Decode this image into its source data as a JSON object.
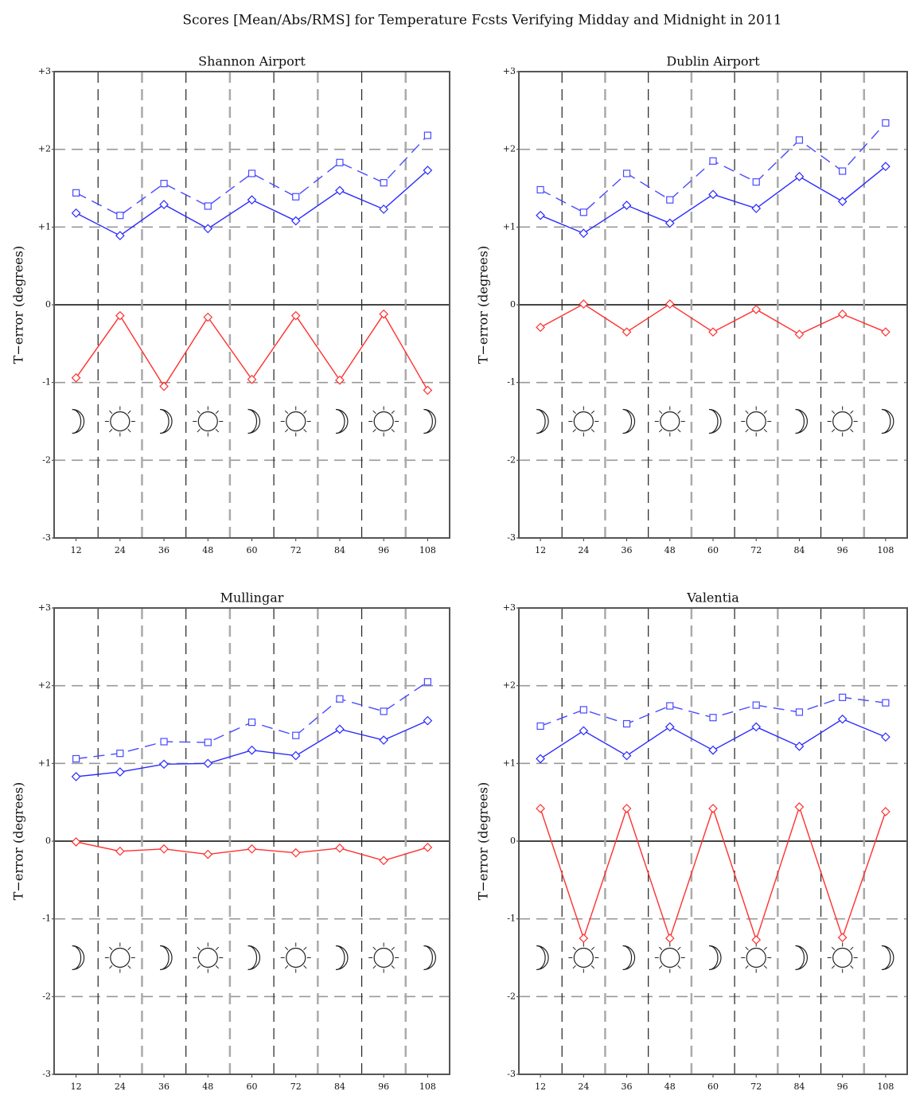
{
  "title": "Scores [Mean/Abs/RMS] for Temperature Fcsts Verifying Midday and Midnight in 2011",
  "chart_data": [
    {
      "type": "line",
      "title": "Shannon Airport",
      "ylabel": "T−error  (degrees)",
      "x": [
        12,
        24,
        36,
        48,
        60,
        72,
        84,
        96,
        108
      ],
      "xlim": [
        6,
        114
      ],
      "xticks": [
        12,
        24,
        36,
        48,
        60,
        72,
        84,
        96,
        108
      ],
      "ylim": [
        -3,
        3
      ],
      "yticks": [
        {
          "value": 3,
          "label": "+3"
        },
        {
          "value": 2,
          "label": "+2"
        },
        {
          "value": 1,
          "label": "+1"
        },
        0,
        -1,
        -2,
        -3
      ],
      "grid": true,
      "series": [
        {
          "color": "#4a4aff",
          "style": "dashed",
          "marker": "square",
          "values": [
            1.44,
            1.15,
            1.56,
            1.27,
            1.69,
            1.39,
            1.83,
            1.57,
            2.18
          ]
        },
        {
          "color": "#2a2aff",
          "style": "solid",
          "marker": "diamond",
          "values": [
            1.18,
            0.89,
            1.29,
            0.98,
            1.35,
            1.08,
            1.47,
            1.23,
            1.73
          ]
        },
        {
          "color": "#ff3030",
          "style": "solid",
          "marker": "diamond",
          "values": [
            -0.94,
            -0.14,
            -1.05,
            -0.16,
            -0.96,
            -0.14,
            -0.97,
            -0.12,
            -1.1
          ]
        }
      ]
    },
    {
      "type": "line",
      "title": "Dublin Airport",
      "ylabel": "T−error  (degrees)",
      "x": [
        12,
        24,
        36,
        48,
        60,
        72,
        84,
        96,
        108
      ],
      "xlim": [
        6,
        114
      ],
      "xticks": [
        12,
        24,
        36,
        48,
        60,
        72,
        84,
        96,
        108
      ],
      "ylim": [
        -3,
        3
      ],
      "yticks": [
        {
          "value": 3,
          "label": "+3"
        },
        {
          "value": 2,
          "label": "+2"
        },
        {
          "value": 1,
          "label": "+1"
        },
        0,
        -1,
        -2,
        -3
      ],
      "grid": true,
      "series": [
        {
          "color": "#4a4aff",
          "style": "dashed",
          "marker": "square",
          "values": [
            1.48,
            1.19,
            1.69,
            1.35,
            1.85,
            1.58,
            2.12,
            1.72,
            2.34
          ]
        },
        {
          "color": "#2a2aff",
          "style": "solid",
          "marker": "diamond",
          "values": [
            1.15,
            0.92,
            1.28,
            1.05,
            1.42,
            1.24,
            1.65,
            1.33,
            1.78
          ]
        },
        {
          "color": "#ff3030",
          "style": "solid",
          "marker": "diamond",
          "values": [
            -0.29,
            0.01,
            -0.35,
            0.01,
            -0.35,
            -0.06,
            -0.38,
            -0.12,
            -0.35
          ]
        }
      ]
    },
    {
      "type": "line",
      "title": "Mullingar",
      "ylabel": "T−error  (degrees)",
      "x": [
        12,
        24,
        36,
        48,
        60,
        72,
        84,
        96,
        108
      ],
      "xlim": [
        6,
        114
      ],
      "xticks": [
        12,
        24,
        36,
        48,
        60,
        72,
        84,
        96,
        108
      ],
      "ylim": [
        -3,
        3
      ],
      "yticks": [
        {
          "value": 3,
          "label": "+3"
        },
        {
          "value": 2,
          "label": "+2"
        },
        {
          "value": 1,
          "label": "+1"
        },
        0,
        -1,
        -2,
        -3
      ],
      "grid": true,
      "series": [
        {
          "color": "#4a4aff",
          "style": "dashed",
          "marker": "square",
          "values": [
            1.06,
            1.13,
            1.28,
            1.27,
            1.53,
            1.36,
            1.83,
            1.67,
            2.05
          ]
        },
        {
          "color": "#2a2aff",
          "style": "solid",
          "marker": "diamond",
          "values": [
            0.83,
            0.89,
            0.99,
            1.0,
            1.17,
            1.1,
            1.44,
            1.3,
            1.55
          ]
        },
        {
          "color": "#ff3030",
          "style": "solid",
          "marker": "diamond",
          "values": [
            -0.01,
            -0.13,
            -0.1,
            -0.17,
            -0.1,
            -0.15,
            -0.09,
            -0.25,
            -0.08
          ]
        }
      ]
    },
    {
      "type": "line",
      "title": "Valentia",
      "ylabel": "T−error  (degrees)",
      "x": [
        12,
        24,
        36,
        48,
        60,
        72,
        84,
        96,
        108
      ],
      "xlim": [
        6,
        114
      ],
      "xticks": [
        12,
        24,
        36,
        48,
        60,
        72,
        84,
        96,
        108
      ],
      "ylim": [
        -3,
        3
      ],
      "yticks": [
        {
          "value": 3,
          "label": "+3"
        },
        {
          "value": 2,
          "label": "+2"
        },
        {
          "value": 1,
          "label": "+1"
        },
        0,
        -1,
        -2,
        -3
      ],
      "grid": true,
      "series": [
        {
          "color": "#4a4aff",
          "style": "dashed",
          "marker": "square",
          "values": [
            1.48,
            1.69,
            1.51,
            1.74,
            1.59,
            1.75,
            1.66,
            1.85,
            1.78
          ]
        },
        {
          "color": "#2a2aff",
          "style": "solid",
          "marker": "diamond",
          "values": [
            1.06,
            1.42,
            1.1,
            1.47,
            1.17,
            1.47,
            1.22,
            1.57,
            1.34
          ]
        },
        {
          "color": "#ff3030",
          "style": "solid",
          "marker": "diamond",
          "values": [
            0.42,
            -1.25,
            0.42,
            -1.25,
            0.42,
            -1.27,
            0.44,
            -1.24,
            0.38
          ]
        }
      ]
    }
  ]
}
